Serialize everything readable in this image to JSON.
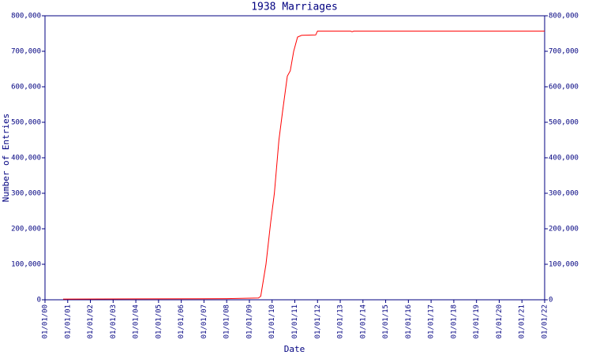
{
  "chart_data": {
    "type": "line",
    "title": "1938 Marriages",
    "x_label": "Date",
    "y_label": "Number of Entries",
    "x": [
      0.8,
      4,
      8,
      9.4,
      9.5,
      9.73,
      9.94,
      10.1,
      10.3,
      10.46,
      10.67,
      10.8,
      10.95,
      11.12,
      11.3,
      11.92,
      12.0,
      13.45,
      13.52,
      13.6,
      22
    ],
    "series": [
      {
        "name": "1938 Marriages",
        "color": "#ff0000",
        "values": [
          2000,
          2500,
          3000,
          5000,
          10000,
          100000,
          220000,
          300000,
          450000,
          530000,
          630000,
          645000,
          700000,
          740000,
          745000,
          746000,
          757000,
          757000,
          755000,
          757000,
          757000
        ]
      }
    ],
    "xlim": [
      0,
      22
    ],
    "xticks": [
      {
        "value": 0,
        "label": "01/01/00"
      },
      {
        "value": 1,
        "label": "01/01/01"
      },
      {
        "value": 2,
        "label": "01/01/02"
      },
      {
        "value": 3,
        "label": "01/01/03"
      },
      {
        "value": 4,
        "label": "01/01/04"
      },
      {
        "value": 5,
        "label": "01/01/05"
      },
      {
        "value": 6,
        "label": "01/01/06"
      },
      {
        "value": 7,
        "label": "01/01/07"
      },
      {
        "value": 8,
        "label": "01/01/08"
      },
      {
        "value": 9,
        "label": "01/01/09"
      },
      {
        "value": 10,
        "label": "01/01/10"
      },
      {
        "value": 11,
        "label": "01/01/11"
      },
      {
        "value": 12,
        "label": "01/01/12"
      },
      {
        "value": 13,
        "label": "01/01/13"
      },
      {
        "value": 14,
        "label": "01/01/14"
      },
      {
        "value": 15,
        "label": "01/01/15"
      },
      {
        "value": 16,
        "label": "01/01/16"
      },
      {
        "value": 17,
        "label": "01/01/17"
      },
      {
        "value": 18,
        "label": "01/01/18"
      },
      {
        "value": 19,
        "label": "01/01/19"
      },
      {
        "value": 20,
        "label": "01/01/20"
      },
      {
        "value": 21,
        "label": "01/01/21"
      },
      {
        "value": 22,
        "label": "01/01/22"
      }
    ],
    "ylim": [
      0,
      800000
    ],
    "yticks": [
      0,
      {
        "value": 100000,
        "label": "100,000"
      },
      {
        "value": 200000,
        "label": "200,000"
      },
      {
        "value": 300000,
        "label": "300,000"
      },
      {
        "value": 400000,
        "label": "400,000"
      },
      {
        "value": 500000,
        "label": "500,000"
      },
      {
        "value": 600000,
        "label": "600,000"
      },
      {
        "value": 700000,
        "label": "700,000"
      },
      {
        "value": 800000,
        "label": "800,000"
      }
    ],
    "axis_color": "#000080"
  }
}
